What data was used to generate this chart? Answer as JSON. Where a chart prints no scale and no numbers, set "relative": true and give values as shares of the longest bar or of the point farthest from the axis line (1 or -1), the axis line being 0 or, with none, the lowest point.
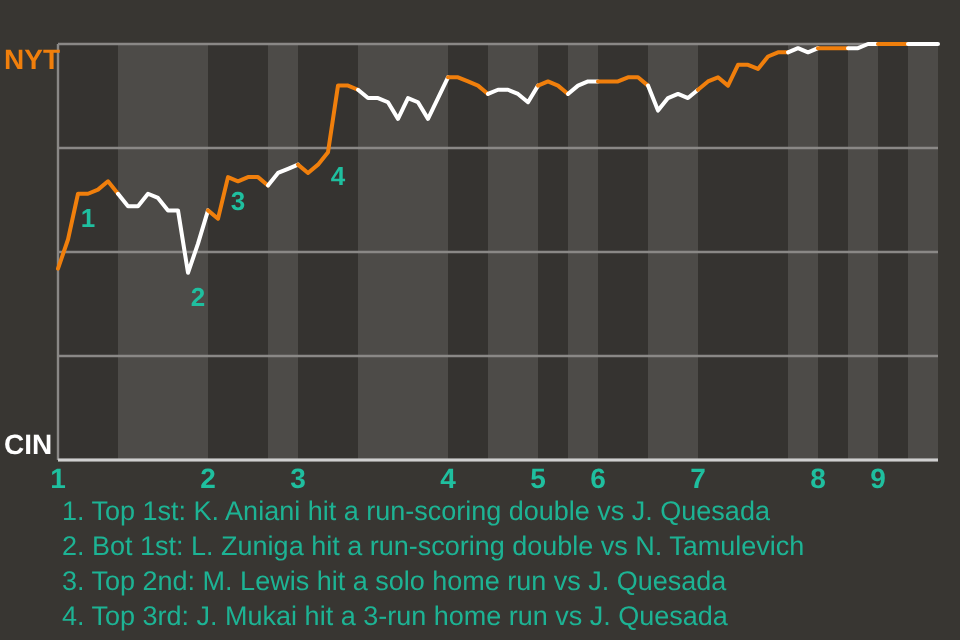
{
  "chart_data": {
    "type": "line",
    "categories": [
      "1",
      null,
      null,
      null,
      null,
      null,
      null,
      null,
      null,
      null,
      null,
      null,
      null,
      null,
      null,
      "2",
      null,
      null,
      null,
      null,
      null,
      null,
      null,
      null,
      "3",
      null,
      null,
      null,
      null,
      null,
      null,
      null,
      null,
      null,
      null,
      null,
      null,
      null,
      null,
      "4",
      null,
      null,
      null,
      null,
      null,
      null,
      null,
      null,
      "5",
      null,
      null,
      null,
      null,
      null,
      "6",
      null,
      null,
      null,
      null,
      null,
      null,
      null,
      null,
      null,
      "7",
      null,
      null,
      null,
      null,
      null,
      null,
      null,
      null,
      null,
      null,
      null,
      "8",
      null,
      null,
      null,
      null,
      null,
      "9",
      null,
      null,
      null,
      null,
      null,
      null
    ],
    "relative": true,
    "series": [
      {
        "color": "#f07f0c",
        "values": [
          0.46,
          0.53,
          0.64,
          0.64,
          0.65,
          0.67,
          0.64,
          null,
          null,
          null,
          null,
          null,
          null,
          null,
          null,
          null,
          null,
          null,
          null,
          null,
          null,
          null,
          null,
          null,
          null,
          null,
          null,
          null,
          null,
          null,
          null,
          null,
          null,
          null,
          null,
          null,
          null,
          null,
          null,
          null,
          null,
          null,
          null,
          null,
          null,
          null,
          null,
          null,
          null,
          null,
          null,
          null,
          null,
          null,
          null,
          null,
          null,
          null,
          null,
          null,
          null,
          null,
          null,
          null,
          null,
          null,
          null,
          null,
          null,
          null,
          null,
          null,
          null,
          null,
          null,
          null,
          null,
          null,
          null,
          null,
          null,
          null,
          null,
          null,
          null,
          null,
          null,
          null,
          null
        ]
      },
      {
        "color": "#ffffff",
        "values": [
          null,
          null,
          null,
          null,
          null,
          null,
          0.64,
          0.61,
          0.61,
          0.64,
          0.63,
          0.6,
          0.6,
          0.45,
          0.52,
          0.6,
          null,
          null,
          null,
          null,
          null,
          null,
          null,
          null,
          null,
          null,
          null,
          null,
          null,
          null,
          null,
          null,
          null,
          null,
          null,
          null,
          null,
          null,
          null,
          null,
          null,
          null,
          null,
          null,
          null,
          null,
          null,
          null,
          null,
          null,
          null,
          null,
          null,
          null,
          null,
          null,
          null,
          null,
          null,
          null,
          null,
          null,
          null,
          null,
          null,
          null,
          null,
          null,
          null,
          null,
          null,
          null,
          null,
          null,
          null,
          null,
          null,
          null,
          null,
          null,
          null,
          null,
          null,
          null,
          null,
          null,
          null,
          null,
          null
        ]
      },
      {
        "color": "#f07f0c",
        "values": [
          null,
          null,
          null,
          null,
          null,
          null,
          null,
          null,
          null,
          null,
          null,
          null,
          null,
          null,
          null,
          0.6,
          0.58,
          0.68,
          0.67,
          0.68,
          0.68,
          0.66,
          null,
          null,
          null,
          null,
          null,
          null,
          null,
          null,
          null,
          null,
          null,
          null,
          null,
          null,
          null,
          null,
          null,
          null,
          null,
          null,
          null,
          null,
          null,
          null,
          null,
          null,
          null,
          null,
          null,
          null,
          null,
          null,
          null,
          null,
          null,
          null,
          null,
          null,
          null,
          null,
          null,
          null,
          null,
          null,
          null,
          null,
          null,
          null,
          null,
          null,
          null,
          null,
          null,
          null,
          null,
          null,
          null,
          null,
          null,
          null,
          null,
          null,
          null,
          null,
          null,
          null,
          null
        ]
      },
      {
        "color": "#ffffff",
        "values": [
          null,
          null,
          null,
          null,
          null,
          null,
          null,
          null,
          null,
          null,
          null,
          null,
          null,
          null,
          null,
          null,
          null,
          null,
          null,
          null,
          null,
          0.66,
          0.69,
          0.7,
          0.71,
          null,
          null,
          null,
          null,
          null,
          null,
          null,
          null,
          null,
          null,
          null,
          null,
          null,
          null,
          null,
          null,
          null,
          null,
          null,
          null,
          null,
          null,
          null,
          null,
          null,
          null,
          null,
          null,
          null,
          null,
          null,
          null,
          null,
          null,
          null,
          null,
          null,
          null,
          null,
          null,
          null,
          null,
          null,
          null,
          null,
          null,
          null,
          null,
          null,
          null,
          null,
          null,
          null,
          null,
          null,
          null,
          null,
          null,
          null,
          null,
          null,
          null,
          null,
          null
        ]
      },
      {
        "color": "#f07f0c",
        "values": [
          null,
          null,
          null,
          null,
          null,
          null,
          null,
          null,
          null,
          null,
          null,
          null,
          null,
          null,
          null,
          null,
          null,
          null,
          null,
          null,
          null,
          null,
          null,
          null,
          0.71,
          0.69,
          0.71,
          0.74,
          0.9,
          0.9,
          0.89,
          null,
          null,
          null,
          null,
          null,
          null,
          null,
          null,
          null,
          null,
          null,
          null,
          null,
          null,
          null,
          null,
          null,
          null,
          null,
          null,
          null,
          null,
          null,
          null,
          null,
          null,
          null,
          null,
          null,
          null,
          null,
          null,
          null,
          null,
          null,
          null,
          null,
          null,
          null,
          null,
          null,
          null,
          null,
          null,
          null,
          null,
          null,
          null,
          null,
          null,
          null,
          null,
          null,
          null,
          null,
          null,
          null,
          null
        ]
      },
      {
        "color": "#ffffff",
        "values": [
          null,
          null,
          null,
          null,
          null,
          null,
          null,
          null,
          null,
          null,
          null,
          null,
          null,
          null,
          null,
          null,
          null,
          null,
          null,
          null,
          null,
          null,
          null,
          null,
          null,
          null,
          null,
          null,
          null,
          null,
          0.89,
          0.87,
          0.87,
          0.86,
          0.82,
          0.87,
          0.86,
          0.82,
          0.87,
          0.92,
          null,
          null,
          null,
          null,
          null,
          null,
          null,
          null,
          null,
          null,
          null,
          null,
          null,
          null,
          null,
          null,
          null,
          null,
          null,
          null,
          null,
          null,
          null,
          null,
          null,
          null,
          null,
          null,
          null,
          null,
          null,
          null,
          null,
          null,
          null,
          null,
          null,
          null,
          null,
          null,
          null,
          null,
          null,
          null,
          null,
          null,
          null,
          null,
          null
        ]
      },
      {
        "color": "#f07f0c",
        "values": [
          null,
          null,
          null,
          null,
          null,
          null,
          null,
          null,
          null,
          null,
          null,
          null,
          null,
          null,
          null,
          null,
          null,
          null,
          null,
          null,
          null,
          null,
          null,
          null,
          null,
          null,
          null,
          null,
          null,
          null,
          null,
          null,
          null,
          null,
          null,
          null,
          null,
          null,
          null,
          0.92,
          0.92,
          0.91,
          0.9,
          0.88,
          null,
          null,
          null,
          null,
          null,
          null,
          null,
          null,
          null,
          null,
          null,
          null,
          null,
          null,
          null,
          null,
          null,
          null,
          null,
          null,
          null,
          null,
          null,
          null,
          null,
          null,
          null,
          null,
          null,
          null,
          null,
          null,
          null,
          null,
          null,
          null,
          null,
          null,
          null,
          null,
          null,
          null,
          null,
          null,
          null
        ]
      },
      {
        "color": "#ffffff",
        "values": [
          null,
          null,
          null,
          null,
          null,
          null,
          null,
          null,
          null,
          null,
          null,
          null,
          null,
          null,
          null,
          null,
          null,
          null,
          null,
          null,
          null,
          null,
          null,
          null,
          null,
          null,
          null,
          null,
          null,
          null,
          null,
          null,
          null,
          null,
          null,
          null,
          null,
          null,
          null,
          null,
          null,
          null,
          null,
          0.88,
          0.89,
          0.89,
          0.88,
          0.86,
          0.9,
          null,
          null,
          null,
          null,
          null,
          null,
          null,
          null,
          null,
          null,
          null,
          null,
          null,
          null,
          null,
          null,
          null,
          null,
          null,
          null,
          null,
          null,
          null,
          null,
          null,
          null,
          null,
          null,
          null,
          null,
          null,
          null,
          null,
          null,
          null,
          null,
          null,
          null,
          null,
          null
        ]
      },
      {
        "color": "#f07f0c",
        "values": [
          null,
          null,
          null,
          null,
          null,
          null,
          null,
          null,
          null,
          null,
          null,
          null,
          null,
          null,
          null,
          null,
          null,
          null,
          null,
          null,
          null,
          null,
          null,
          null,
          null,
          null,
          null,
          null,
          null,
          null,
          null,
          null,
          null,
          null,
          null,
          null,
          null,
          null,
          null,
          null,
          null,
          null,
          null,
          null,
          null,
          null,
          null,
          null,
          0.9,
          0.91,
          0.9,
          0.88,
          null,
          null,
          null,
          null,
          null,
          null,
          null,
          null,
          null,
          null,
          null,
          null,
          null,
          null,
          null,
          null,
          null,
          null,
          null,
          null,
          null,
          null,
          null,
          null,
          null,
          null,
          null,
          null,
          null,
          null,
          null,
          null,
          null,
          null,
          null,
          null,
          null
        ]
      },
      {
        "color": "#ffffff",
        "values": [
          null,
          null,
          null,
          null,
          null,
          null,
          null,
          null,
          null,
          null,
          null,
          null,
          null,
          null,
          null,
          null,
          null,
          null,
          null,
          null,
          null,
          null,
          null,
          null,
          null,
          null,
          null,
          null,
          null,
          null,
          null,
          null,
          null,
          null,
          null,
          null,
          null,
          null,
          null,
          null,
          null,
          null,
          null,
          null,
          null,
          null,
          null,
          null,
          null,
          null,
          null,
          0.88,
          0.9,
          0.91,
          0.91,
          null,
          null,
          null,
          null,
          null,
          null,
          null,
          null,
          null,
          null,
          null,
          null,
          null,
          null,
          null,
          null,
          null,
          null,
          null,
          null,
          null,
          null,
          null,
          null,
          null,
          null,
          null,
          null,
          null,
          null,
          null,
          null,
          null,
          null
        ]
      },
      {
        "color": "#f07f0c",
        "values": [
          null,
          null,
          null,
          null,
          null,
          null,
          null,
          null,
          null,
          null,
          null,
          null,
          null,
          null,
          null,
          null,
          null,
          null,
          null,
          null,
          null,
          null,
          null,
          null,
          null,
          null,
          null,
          null,
          null,
          null,
          null,
          null,
          null,
          null,
          null,
          null,
          null,
          null,
          null,
          null,
          null,
          null,
          null,
          null,
          null,
          null,
          null,
          null,
          null,
          null,
          null,
          null,
          null,
          null,
          0.91,
          0.91,
          0.91,
          0.92,
          0.92,
          0.9,
          null,
          null,
          null,
          null,
          null,
          null,
          null,
          null,
          null,
          null,
          null,
          null,
          null,
          null,
          null,
          null,
          null,
          null,
          null,
          null,
          null,
          null,
          null,
          null,
          null,
          null,
          null,
          null,
          null
        ]
      },
      {
        "color": "#ffffff",
        "values": [
          null,
          null,
          null,
          null,
          null,
          null,
          null,
          null,
          null,
          null,
          null,
          null,
          null,
          null,
          null,
          null,
          null,
          null,
          null,
          null,
          null,
          null,
          null,
          null,
          null,
          null,
          null,
          null,
          null,
          null,
          null,
          null,
          null,
          null,
          null,
          null,
          null,
          null,
          null,
          null,
          null,
          null,
          null,
          null,
          null,
          null,
          null,
          null,
          null,
          null,
          null,
          null,
          null,
          null,
          null,
          null,
          null,
          null,
          null,
          0.9,
          0.84,
          0.87,
          0.88,
          0.87,
          0.89,
          null,
          null,
          null,
          null,
          null,
          null,
          null,
          null,
          null,
          null,
          null,
          null,
          null,
          null,
          null,
          null,
          null,
          null,
          null,
          null,
          null,
          null,
          null,
          null
        ]
      },
      {
        "color": "#f07f0c",
        "values": [
          null,
          null,
          null,
          null,
          null,
          null,
          null,
          null,
          null,
          null,
          null,
          null,
          null,
          null,
          null,
          null,
          null,
          null,
          null,
          null,
          null,
          null,
          null,
          null,
          null,
          null,
          null,
          null,
          null,
          null,
          null,
          null,
          null,
          null,
          null,
          null,
          null,
          null,
          null,
          null,
          null,
          null,
          null,
          null,
          null,
          null,
          null,
          null,
          null,
          null,
          null,
          null,
          null,
          null,
          null,
          null,
          null,
          null,
          null,
          null,
          null,
          null,
          null,
          null,
          0.89,
          0.91,
          0.92,
          0.9,
          0.95,
          0.95,
          0.94,
          0.97,
          0.98,
          0.98,
          null,
          null,
          null,
          null,
          null,
          null,
          null,
          null,
          null,
          null,
          null,
          null,
          null,
          null,
          null
        ]
      },
      {
        "color": "#ffffff",
        "values": [
          null,
          null,
          null,
          null,
          null,
          null,
          null,
          null,
          null,
          null,
          null,
          null,
          null,
          null,
          null,
          null,
          null,
          null,
          null,
          null,
          null,
          null,
          null,
          null,
          null,
          null,
          null,
          null,
          null,
          null,
          null,
          null,
          null,
          null,
          null,
          null,
          null,
          null,
          null,
          null,
          null,
          null,
          null,
          null,
          null,
          null,
          null,
          null,
          null,
          null,
          null,
          null,
          null,
          null,
          null,
          null,
          null,
          null,
          null,
          null,
          null,
          null,
          null,
          null,
          null,
          null,
          null,
          null,
          null,
          null,
          null,
          null,
          null,
          0.98,
          0.99,
          0.98,
          0.99,
          null,
          null,
          null,
          null,
          null,
          null,
          null,
          null,
          null,
          null,
          null,
          null
        ]
      },
      {
        "color": "#f07f0c",
        "values": [
          null,
          null,
          null,
          null,
          null,
          null,
          null,
          null,
          null,
          null,
          null,
          null,
          null,
          null,
          null,
          null,
          null,
          null,
          null,
          null,
          null,
          null,
          null,
          null,
          null,
          null,
          null,
          null,
          null,
          null,
          null,
          null,
          null,
          null,
          null,
          null,
          null,
          null,
          null,
          null,
          null,
          null,
          null,
          null,
          null,
          null,
          null,
          null,
          null,
          null,
          null,
          null,
          null,
          null,
          null,
          null,
          null,
          null,
          null,
          null,
          null,
          null,
          null,
          null,
          null,
          null,
          null,
          null,
          null,
          null,
          null,
          null,
          null,
          null,
          null,
          null,
          0.99,
          0.99,
          0.99,
          0.99,
          null,
          null,
          null,
          null,
          null,
          null,
          null,
          null,
          null
        ]
      },
      {
        "color": "#ffffff",
        "values": [
          null,
          null,
          null,
          null,
          null,
          null,
          null,
          null,
          null,
          null,
          null,
          null,
          null,
          null,
          null,
          null,
          null,
          null,
          null,
          null,
          null,
          null,
          null,
          null,
          null,
          null,
          null,
          null,
          null,
          null,
          null,
          null,
          null,
          null,
          null,
          null,
          null,
          null,
          null,
          null,
          null,
          null,
          null,
          null,
          null,
          null,
          null,
          null,
          null,
          null,
          null,
          null,
          null,
          null,
          null,
          null,
          null,
          null,
          null,
          null,
          null,
          null,
          null,
          null,
          null,
          null,
          null,
          null,
          null,
          null,
          null,
          null,
          null,
          null,
          null,
          null,
          null,
          null,
          null,
          0.99,
          0.99,
          1,
          1,
          null,
          null,
          null,
          null,
          null,
          null
        ]
      },
      {
        "color": "#f07f0c",
        "values": [
          null,
          null,
          null,
          null,
          null,
          null,
          null,
          null,
          null,
          null,
          null,
          null,
          null,
          null,
          null,
          null,
          null,
          null,
          null,
          null,
          null,
          null,
          null,
          null,
          null,
          null,
          null,
          null,
          null,
          null,
          null,
          null,
          null,
          null,
          null,
          null,
          null,
          null,
          null,
          null,
          null,
          null,
          null,
          null,
          null,
          null,
          null,
          null,
          null,
          null,
          null,
          null,
          null,
          null,
          null,
          null,
          null,
          null,
          null,
          null,
          null,
          null,
          null,
          null,
          null,
          null,
          null,
          null,
          null,
          null,
          null,
          null,
          null,
          null,
          null,
          null,
          null,
          null,
          null,
          null,
          null,
          null,
          1,
          1,
          1,
          1,
          null,
          null,
          null
        ]
      },
      {
        "color": "#ffffff",
        "values": [
          null,
          null,
          null,
          null,
          null,
          null,
          null,
          null,
          null,
          null,
          null,
          null,
          null,
          null,
          null,
          null,
          null,
          null,
          null,
          null,
          null,
          null,
          null,
          null,
          null,
          null,
          null,
          null,
          null,
          null,
          null,
          null,
          null,
          null,
          null,
          null,
          null,
          null,
          null,
          null,
          null,
          null,
          null,
          null,
          null,
          null,
          null,
          null,
          null,
          null,
          null,
          null,
          null,
          null,
          null,
          null,
          null,
          null,
          null,
          null,
          null,
          null,
          null,
          null,
          null,
          null,
          null,
          null,
          null,
          null,
          null,
          null,
          null,
          null,
          null,
          null,
          null,
          null,
          null,
          null,
          null,
          null,
          null,
          null,
          null,
          1,
          1,
          1,
          1
        ]
      }
    ],
    "grid": "y",
    "annotations": [
      {
        "text": "1",
        "y": 0.64
      },
      {
        "text": "2",
        "y": 0.45
      },
      {
        "text": "3",
        "y": 0.68
      },
      {
        "text": "4",
        "y": 0.74
      },
      "NYT",
      "CIN",
      "1. Top 1st: K. Aniani hit a run-scoring double vs J. Quesada",
      "2. Bot 1st: L. Zuniga hit a run-scoring double vs N. Tamulevich",
      "3. Top 2nd: M. Lewis hit a solo home run vs J. Quesada",
      "4. Top 3rd: J. Mukai hit a 3-run home run vs J. Quesada"
    ],
    "marker": "none",
    "line_style": "solid"
  }
}
